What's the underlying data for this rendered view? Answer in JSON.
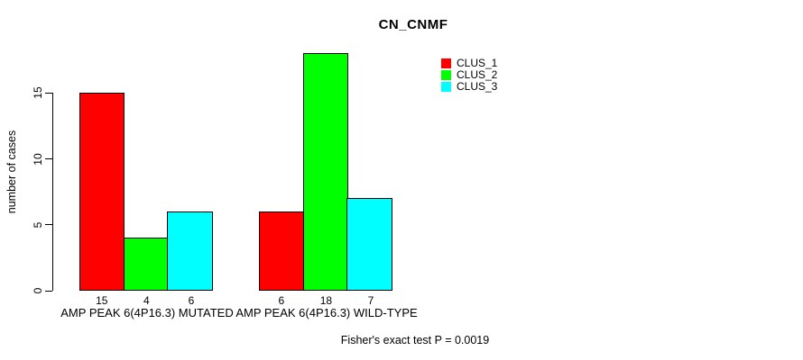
{
  "title": "CN_CNMF",
  "annotation": "Fisher's exact test P = 0.0019",
  "chart_data": {
    "type": "bar",
    "title": "CN_CNMF",
    "categories": [
      "AMP PEAK 6(4P16.3) MUTATED",
      "AMP PEAK 6(4P16.3) WILD-TYPE"
    ],
    "series": [
      {
        "name": "CLUS_1",
        "color": "#ff0000",
        "values": [
          15,
          6
        ]
      },
      {
        "name": "CLUS_2",
        "color": "#00ff00",
        "values": [
          4,
          18
        ]
      },
      {
        "name": "CLUS_3",
        "color": "#00ffff",
        "values": [
          6,
          7
        ]
      }
    ],
    "xlabel": "",
    "ylabel": "number of cases",
    "yticks": [
      0,
      5,
      10,
      15
    ],
    "ylim": [
      0,
      18
    ],
    "bar_value_labels": [
      [
        "15",
        "4",
        "6"
      ],
      [
        "6",
        "18",
        "7"
      ]
    ],
    "legend_position": "top-right",
    "grid": false,
    "annotation": "Fisher's exact test P = 0.0019"
  }
}
